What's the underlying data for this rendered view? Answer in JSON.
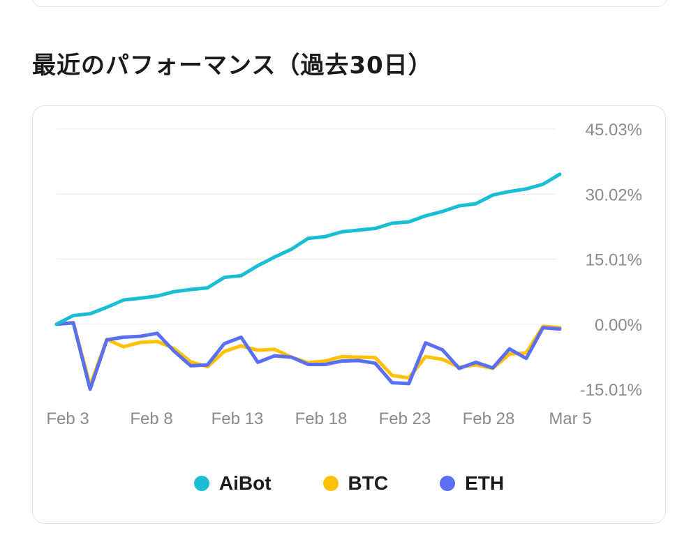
{
  "section": {
    "title": "最近のパフォーマンス（過去30日）"
  },
  "chart_data": {
    "type": "line",
    "x_tick_labels": [
      "Feb 3",
      "Feb 8",
      "Feb 13",
      "Feb 18",
      "Feb 23",
      "Feb 28",
      "Mar 5"
    ],
    "y_ticks": [
      45.03,
      30.02,
      15.01,
      0.0,
      -15.01
    ],
    "y_tick_labels": [
      "45.03%",
      "30.02%",
      "15.01%",
      "0.00%",
      "-15.01%"
    ],
    "ylim": [
      -15.01,
      45.03
    ],
    "grid": true,
    "legend_position": "bottom",
    "series": [
      {
        "name": "AiBot",
        "color": "#19bdd4",
        "values": [
          0.0,
          2.0,
          2.4,
          3.9,
          5.6,
          6.0,
          6.5,
          7.5,
          8.0,
          8.4,
          10.8,
          11.2,
          13.5,
          15.5,
          17.3,
          19.8,
          20.2,
          21.3,
          21.7,
          22.1,
          23.3,
          23.6,
          25.0,
          26.0,
          27.3,
          27.8,
          29.8,
          30.6,
          31.2,
          32.3,
          34.6
        ]
      },
      {
        "name": "BTC",
        "color": "#ffc107",
        "values": [
          0.0,
          0.4,
          -14.2,
          -3.5,
          -5.2,
          -4.2,
          -4.0,
          -5.6,
          -8.7,
          -9.8,
          -6.3,
          -5.0,
          -6.0,
          -5.8,
          -7.6,
          -8.9,
          -8.5,
          -7.5,
          -7.6,
          -7.7,
          -11.8,
          -12.4,
          -7.5,
          -8.1,
          -9.9,
          -9.4,
          -10.2,
          -6.9,
          -6.6,
          -0.5,
          -0.8
        ]
      },
      {
        "name": "ETH",
        "color": "#5b6ff2",
        "values": [
          0.0,
          0.3,
          -15.0,
          -3.6,
          -3.0,
          -2.8,
          -2.1,
          -6.2,
          -9.6,
          -9.4,
          -4.5,
          -3.0,
          -8.8,
          -7.3,
          -7.6,
          -9.3,
          -9.3,
          -8.5,
          -8.4,
          -9.0,
          -13.5,
          -13.7,
          -4.3,
          -5.9,
          -10.2,
          -8.8,
          -10.1,
          -5.7,
          -7.9,
          -0.8,
          -1.1
        ]
      }
    ]
  }
}
